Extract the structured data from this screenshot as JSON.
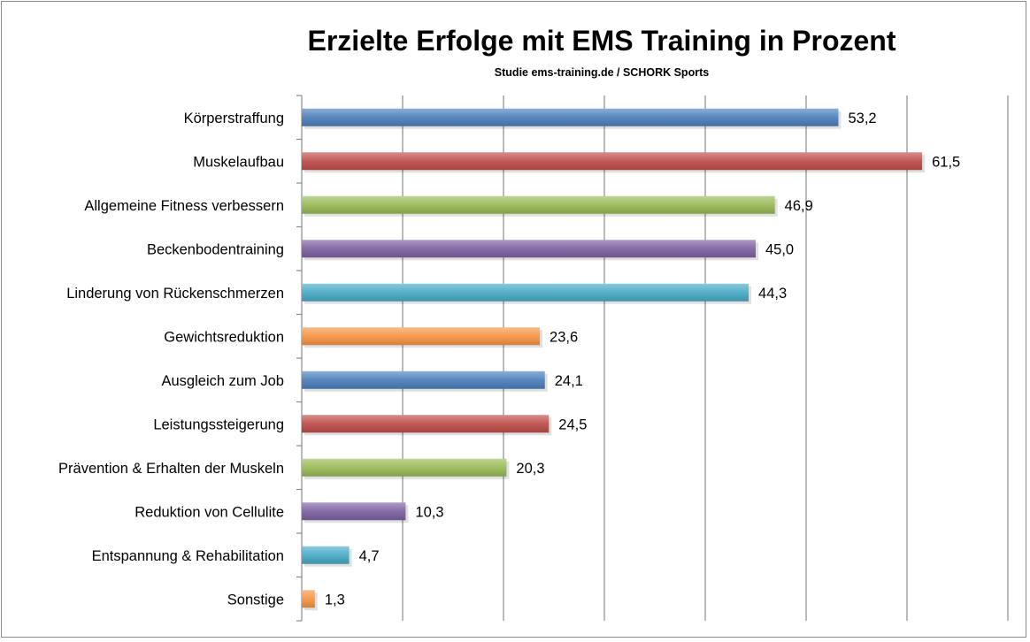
{
  "chart_data": {
    "type": "bar",
    "orientation": "horizontal",
    "title": "Erzielte Erfolge mit EMS Training in Prozent",
    "subtitle": "Studie ems-training.de / SCHORK Sports",
    "xlabel": "",
    "ylabel": "",
    "xlim": [
      0,
      70
    ],
    "grid": true,
    "legend": "none",
    "categories": [
      "Körperstraffung",
      "Muskelaufbau",
      "Allgemeine Fitness verbessern",
      "Beckenbodentraining",
      "Linderung von Rückenschmerzen",
      "Gewichtsreduktion",
      "Ausgleich zum Job",
      "Leistungssteigerung",
      "Prävention & Erhalten der Muskeln",
      "Reduktion von Cellulite",
      "Entspannung & Rehabilitation",
      "Sonstige"
    ],
    "values": [
      53.2,
      61.5,
      46.9,
      45.0,
      44.3,
      23.6,
      24.1,
      24.5,
      20.3,
      10.3,
      4.7,
      1.3
    ],
    "value_labels": [
      "53,2",
      "61,5",
      "46,9",
      "45,0",
      "44,3",
      "23,6",
      "24,1",
      "24,5",
      "20,3",
      "10,3",
      "4,7",
      "1,3"
    ],
    "colors": [
      "#4f81bd",
      "#c0504d",
      "#9bbb59",
      "#8064a2",
      "#4bacc6",
      "#f79646"
    ]
  }
}
